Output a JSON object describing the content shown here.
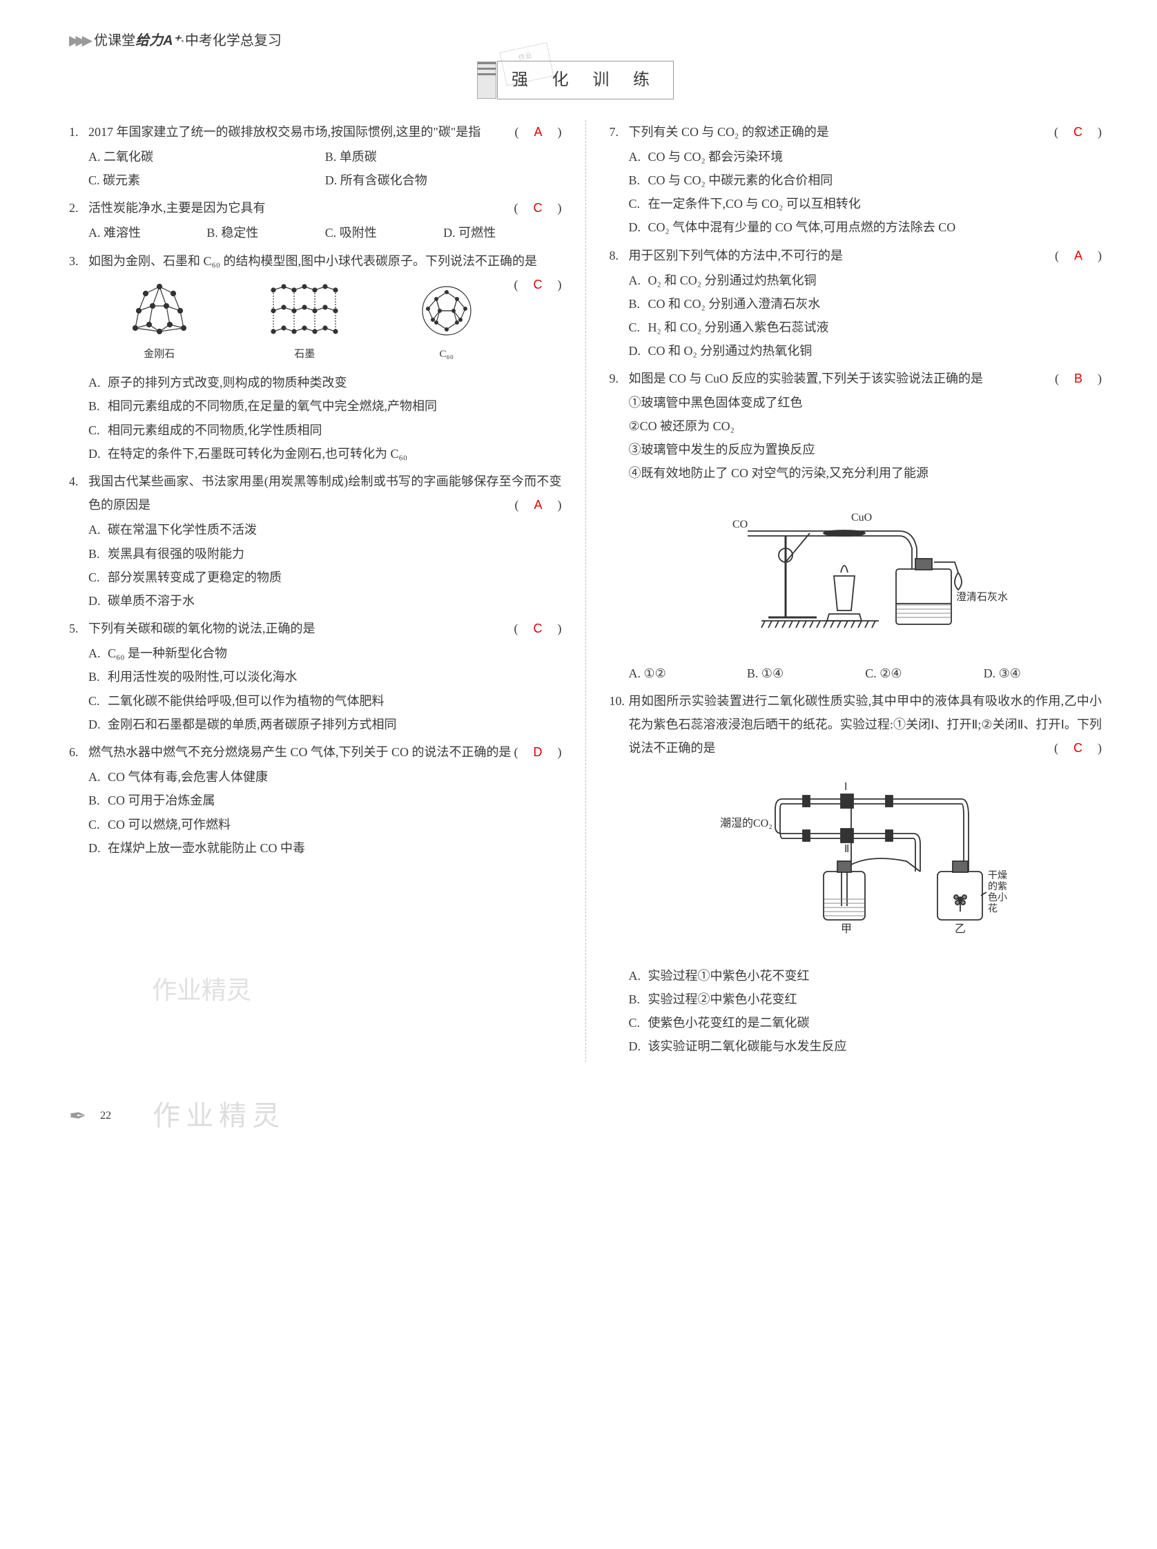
{
  "header": {
    "book_title_prefix": "优课堂",
    "book_title_em": "给力A⁺",
    "book_title_suffix": "·中考化学总复习",
    "section_title": "强 化 训 练",
    "stamp_text": "作业"
  },
  "colors": {
    "text": "#3a3a3a",
    "answer": "#d00",
    "divider": "#bbb",
    "watermark": "#e0e0e0"
  },
  "fonts": {
    "body_family": "SimSun",
    "body_size": 18,
    "title_size": 24,
    "line_height": 1.9
  },
  "questions_left": [
    {
      "num": "1.",
      "stem": "2017 年国家建立了统一的碳排放权交易市场,按国际惯例,这里的\"碳\"是指",
      "answer": "A",
      "opts_layout": "row2",
      "opts": [
        {
          "l": "A.",
          "t": "二氧化碳"
        },
        {
          "l": "B.",
          "t": "单质碳"
        },
        {
          "l": "C.",
          "t": "碳元素"
        },
        {
          "l": "D.",
          "t": "所有含碳化合物"
        }
      ]
    },
    {
      "num": "2.",
      "stem": "活性炭能净水,主要是因为它具有",
      "answer": "C",
      "opts_layout": "row4",
      "opts": [
        {
          "l": "A.",
          "t": "难溶性"
        },
        {
          "l": "B.",
          "t": "稳定性"
        },
        {
          "l": "C.",
          "t": "吸附性"
        },
        {
          "l": "D.",
          "t": "可燃性"
        }
      ]
    },
    {
      "num": "3.",
      "stem": "如图为金刚、石墨和 C₆₀ 的结构模型图,图中小球代表碳原子。下列说法不正确的是",
      "answer": "C",
      "figure": {
        "type": "molecule_row",
        "items": [
          {
            "label": "金刚石"
          },
          {
            "label": "石墨"
          },
          {
            "label": "C₆₀"
          }
        ]
      },
      "opts_layout": "block",
      "opts": [
        {
          "l": "A.",
          "t": "原子的排列方式改变,则构成的物质种类改变"
        },
        {
          "l": "B.",
          "t": "相同元素组成的不同物质,在足量的氧气中完全燃烧,产物相同"
        },
        {
          "l": "C.",
          "t": "相同元素组成的不同物质,化学性质相同"
        },
        {
          "l": "D.",
          "t": "在特定的条件下,石墨既可转化为金刚石,也可转化为 C₆₀"
        }
      ]
    },
    {
      "num": "4.",
      "stem": "我国古代某些画家、书法家用墨(用炭黑等制成)绘制或书写的字画能够保存至今而不变色的原因是",
      "answer": "A",
      "opts_layout": "block",
      "opts": [
        {
          "l": "A.",
          "t": "碳在常温下化学性质不活泼"
        },
        {
          "l": "B.",
          "t": "炭黑具有很强的吸附能力"
        },
        {
          "l": "C.",
          "t": "部分炭黑转变成了更稳定的物质"
        },
        {
          "l": "D.",
          "t": "碳单质不溶于水"
        }
      ]
    },
    {
      "num": "5.",
      "stem": "下列有关碳和碳的氧化物的说法,正确的是",
      "answer": "C",
      "opts_layout": "block",
      "opts": [
        {
          "l": "A.",
          "t": "C₆₀ 是一种新型化合物"
        },
        {
          "l": "B.",
          "t": "利用活性炭的吸附性,可以淡化海水"
        },
        {
          "l": "C.",
          "t": "二氧化碳不能供给呼吸,但可以作为植物的气体肥料"
        },
        {
          "l": "D.",
          "t": "金刚石和石墨都是碳的单质,两者碳原子排列方式相同"
        }
      ]
    },
    {
      "num": "6.",
      "stem": "燃气热水器中燃气不充分燃烧易产生 CO 气体,下列关于 CO 的说法不正确的是",
      "answer": "D",
      "opts_layout": "block",
      "opts": [
        {
          "l": "A.",
          "t": "CO 气体有毒,会危害人体健康"
        },
        {
          "l": "B.",
          "t": "CO 可用于冶炼金属"
        },
        {
          "l": "C.",
          "t": "CO 可以燃烧,可作燃料"
        },
        {
          "l": "D.",
          "t": "在煤炉上放一壶水就能防止 CO 中毒"
        }
      ]
    }
  ],
  "questions_right": [
    {
      "num": "7.",
      "stem": "下列有关 CO 与 CO₂ 的叙述正确的是",
      "answer": "C",
      "opts_layout": "block",
      "opts": [
        {
          "l": "A.",
          "t": "CO 与 CO₂ 都会污染环境"
        },
        {
          "l": "B.",
          "t": "CO 与 CO₂ 中碳元素的化合价相同"
        },
        {
          "l": "C.",
          "t": "在一定条件下,CO 与 CO₂ 可以互相转化"
        },
        {
          "l": "D.",
          "t": "CO₂ 气体中混有少量的 CO 气体,可用点燃的方法除去 CO"
        }
      ]
    },
    {
      "num": "8.",
      "stem": "用于区别下列气体的方法中,不可行的是",
      "answer": "A",
      "opts_layout": "block",
      "opts": [
        {
          "l": "A.",
          "t": "O₂ 和 CO₂ 分别通过灼热氧化铜"
        },
        {
          "l": "B.",
          "t": "CO 和 CO₂ 分别通入澄清石灰水"
        },
        {
          "l": "C.",
          "t": "H₂ 和 CO₂ 分别通入紫色石蕊试液"
        },
        {
          "l": "D.",
          "t": "CO 和 O₂ 分别通过灼热氧化铜"
        }
      ]
    },
    {
      "num": "9.",
      "stem": "如图是 CO 与 CuO 反应的实验装置,下列关于该实验说法正确的是",
      "answer": "B",
      "numbered_items": [
        "①玻璃管中黑色固体变成了红色",
        "②CO 被还原为 CO₂",
        "③玻璃管中发生的反应为置换反应",
        "④既有效地防止了 CO 对空气的污染,又充分利用了能源"
      ],
      "figure": {
        "type": "apparatus_co_cuo",
        "labels": {
          "CO": "CO",
          "CuO": "CuO",
          "limewater": "澄清石灰水"
        }
      },
      "opts_layout": "row4",
      "opts": [
        {
          "l": "A.",
          "t": "①②"
        },
        {
          "l": "B.",
          "t": "①④"
        },
        {
          "l": "C.",
          "t": "②④"
        },
        {
          "l": "D.",
          "t": "③④"
        }
      ]
    },
    {
      "num": "10.",
      "stem": "用如图所示实验装置进行二氧化碳性质实验,其中甲中的液体具有吸收水的作用,乙中小花为紫色石蕊溶液浸泡后晒干的纸花。实验过程:①关闭Ⅰ、打开Ⅱ;②关闭Ⅱ、打开Ⅰ。下列说法不正确的是",
      "answer": "C",
      "figure": {
        "type": "apparatus_co2_flowers",
        "labels": {
          "wet": "潮湿的CO₂",
          "I": "Ⅰ",
          "II": "Ⅱ",
          "jia": "甲",
          "yi": "乙",
          "dry_flower": "干燥的紫色小花"
        }
      },
      "opts_layout": "block",
      "opts": [
        {
          "l": "A.",
          "t": "实验过程①中紫色小花不变红"
        },
        {
          "l": "B.",
          "t": "实验过程②中紫色小花变红"
        },
        {
          "l": "C.",
          "t": "使紫色小花变红的是二氧化碳"
        },
        {
          "l": "D.",
          "t": "该实验证明二氧化碳能与水发生反应"
        }
      ]
    }
  ],
  "watermarks": {
    "mid": "作业精灵",
    "footer": "作业精灵"
  },
  "footer": {
    "page_num": "22"
  }
}
